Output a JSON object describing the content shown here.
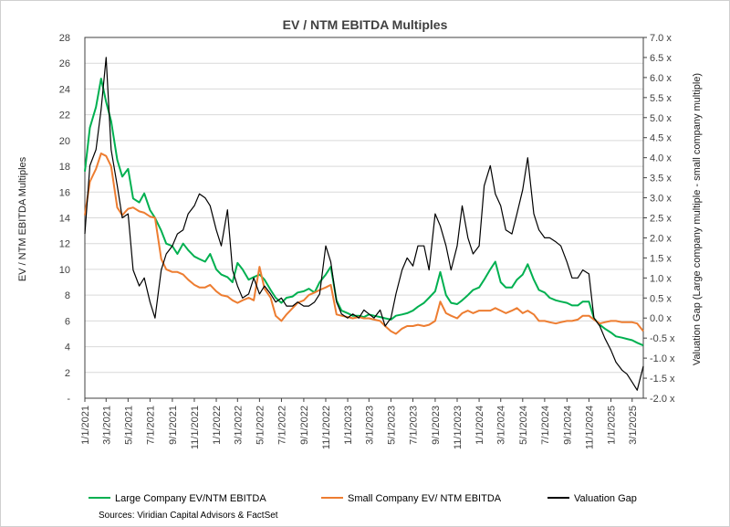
{
  "chart_data": {
    "type": "line",
    "title": "EV / NTM EBITDA Multiples",
    "ylabel": "EV / NTM EBITDA Multiples",
    "y2label": "Valuation Gap (Large company multiple - small company multiple)",
    "ylim": [
      0,
      28
    ],
    "y2lim": [
      -2.0,
      7.0
    ],
    "yticks": [
      "-",
      "2",
      "4",
      "6",
      "8",
      "10",
      "12",
      "14",
      "16",
      "18",
      "20",
      "22",
      "24",
      "26",
      "28"
    ],
    "y2ticks": [
      "-2.0 x",
      "-1.5 x",
      "-1.0 x",
      "-0.5 x",
      "0.0 x",
      "0.5 x",
      "1.0 x",
      "1.5 x",
      "2.0 x",
      "2.5 x",
      "3.0 x",
      "3.5 x",
      "4.0 x",
      "4.5 x",
      "5.0 x",
      "5.5 x",
      "6.0 x",
      "6.5 x",
      "7.0 x"
    ],
    "xticks": [
      "1/1/2021",
      "3/1/2021",
      "5/1/2021",
      "7/1/2021",
      "9/1/2021",
      "11/1/2021",
      "1/1/2022",
      "3/1/2022",
      "5/1/2022",
      "7/1/2022",
      "9/1/2022",
      "11/1/2022",
      "1/1/2023",
      "3/1/2023",
      "5/1/2023",
      "7/1/2023",
      "9/1/2023",
      "11/1/2023",
      "1/1/2024",
      "3/1/2024",
      "5/1/2024",
      "7/1/2024",
      "9/1/2024",
      "11/1/2024",
      "1/1/2025",
      "3/1/2025"
    ],
    "x": [
      "2021-01-01",
      "2021-01-15",
      "2021-02-01",
      "2021-02-15",
      "2021-03-01",
      "2021-03-15",
      "2021-04-01",
      "2021-04-15",
      "2021-05-01",
      "2021-05-15",
      "2021-06-01",
      "2021-06-15",
      "2021-07-01",
      "2021-07-15",
      "2021-08-01",
      "2021-08-15",
      "2021-09-01",
      "2021-09-15",
      "2021-10-01",
      "2021-10-15",
      "2021-11-01",
      "2021-11-15",
      "2021-12-01",
      "2021-12-15",
      "2022-01-01",
      "2022-01-15",
      "2022-02-01",
      "2022-02-15",
      "2022-03-01",
      "2022-03-15",
      "2022-04-01",
      "2022-04-15",
      "2022-05-01",
      "2022-05-15",
      "2022-06-01",
      "2022-06-15",
      "2022-07-01",
      "2022-07-15",
      "2022-08-01",
      "2022-08-15",
      "2022-09-01",
      "2022-09-15",
      "2022-10-01",
      "2022-10-15",
      "2022-11-01",
      "2022-11-15",
      "2022-12-01",
      "2022-12-15",
      "2023-01-01",
      "2023-01-15",
      "2023-02-01",
      "2023-02-15",
      "2023-03-01",
      "2023-03-15",
      "2023-04-01",
      "2023-04-15",
      "2023-05-01",
      "2023-05-15",
      "2023-06-01",
      "2023-06-15",
      "2023-07-01",
      "2023-07-15",
      "2023-08-01",
      "2023-08-15",
      "2023-09-01",
      "2023-09-15",
      "2023-10-01",
      "2023-10-15",
      "2023-11-01",
      "2023-11-15",
      "2023-12-01",
      "2023-12-15",
      "2024-01-01",
      "2024-01-15",
      "2024-02-01",
      "2024-02-15",
      "2024-03-01",
      "2024-03-15",
      "2024-04-01",
      "2024-04-15",
      "2024-05-01",
      "2024-05-15",
      "2024-06-01",
      "2024-06-15",
      "2024-07-01",
      "2024-07-15",
      "2024-08-01",
      "2024-08-15",
      "2024-09-01",
      "2024-09-15",
      "2024-10-01",
      "2024-10-15",
      "2024-11-01",
      "2024-11-15",
      "2024-12-01",
      "2024-12-15",
      "2025-01-01",
      "2025-01-15",
      "2025-02-01",
      "2025-02-15",
      "2025-03-01",
      "2025-03-15",
      "2025-04-01"
    ],
    "series": [
      {
        "name": "Large Company EV/NTM EBITDA",
        "color": "#00b050",
        "axis": "left",
        "values": [
          17.6,
          21.0,
          22.6,
          24.8,
          23.0,
          21.5,
          18.5,
          17.2,
          17.8,
          15.5,
          15.2,
          15.9,
          14.6,
          14.0,
          13.0,
          12.0,
          11.8,
          11.2,
          12.0,
          11.5,
          11.0,
          10.8,
          10.6,
          11.2,
          10.0,
          9.6,
          9.4,
          9.0,
          10.5,
          10.0,
          9.2,
          9.4,
          9.6,
          9.2,
          8.4,
          7.8,
          7.4,
          7.8,
          7.9,
          8.2,
          8.3,
          8.5,
          8.2,
          9.0,
          9.6,
          10.2,
          7.6,
          6.8,
          6.6,
          6.4,
          6.4,
          6.3,
          6.5,
          6.4,
          6.3,
          6.2,
          6.1,
          6.4,
          6.5,
          6.6,
          6.8,
          7.1,
          7.4,
          7.8,
          8.3,
          9.8,
          8.0,
          7.4,
          7.3,
          7.6,
          8.0,
          8.4,
          8.6,
          9.2,
          10.0,
          10.6,
          9.0,
          8.6,
          8.6,
          9.2,
          9.6,
          10.4,
          9.2,
          8.4,
          8.2,
          7.8,
          7.6,
          7.5,
          7.4,
          7.2,
          7.2,
          7.5,
          7.5,
          6.2,
          5.7,
          5.4,
          5.1,
          4.8,
          4.7,
          4.6,
          4.5,
          4.3,
          4.1
        ]
      },
      {
        "name": "Small Company EV/ NTM EBITDA",
        "color": "#ed7d31",
        "axis": "left",
        "values": [
          14.2,
          16.8,
          17.8,
          19.0,
          18.8,
          18.0,
          14.8,
          14.2,
          14.7,
          14.8,
          14.5,
          14.4,
          14.1,
          14.0,
          10.8,
          10.0,
          9.8,
          9.8,
          9.6,
          9.2,
          8.8,
          8.6,
          8.6,
          8.8,
          8.3,
          8.0,
          7.9,
          7.6,
          7.4,
          7.6,
          7.8,
          7.6,
          10.2,
          8.5,
          7.8,
          6.4,
          6.0,
          6.5,
          7.0,
          7.4,
          7.6,
          8.0,
          8.2,
          8.4,
          8.6,
          8.8,
          6.5,
          6.4,
          6.3,
          6.2,
          6.3,
          6.2,
          6.2,
          6.1,
          6.0,
          5.6,
          5.2,
          5.0,
          5.4,
          5.6,
          5.6,
          5.7,
          5.6,
          5.7,
          6.0,
          7.5,
          6.6,
          6.4,
          6.2,
          6.6,
          6.8,
          6.6,
          6.8,
          6.8,
          6.8,
          7.0,
          6.8,
          6.6,
          6.8,
          7.0,
          6.6,
          6.8,
          6.5,
          6.0,
          6.0,
          5.9,
          5.8,
          5.9,
          6.0,
          6.0,
          6.1,
          6.4,
          6.4,
          6.1,
          5.8,
          5.9,
          6.0,
          6.0,
          5.9,
          5.9,
          5.9,
          5.8,
          5.2
        ]
      },
      {
        "name": "Valuation Gap",
        "color": "#000000",
        "axis": "right",
        "values": [
          2.1,
          3.8,
          4.2,
          5.2,
          6.5,
          4.2,
          3.3,
          2.5,
          2.6,
          1.2,
          0.8,
          1.0,
          0.4,
          0.0,
          1.2,
          1.6,
          1.8,
          2.1,
          2.2,
          2.6,
          2.8,
          3.1,
          3.0,
          2.8,
          2.2,
          1.8,
          2.7,
          1.2,
          0.8,
          0.5,
          0.6,
          1.0,
          0.6,
          0.8,
          0.6,
          0.4,
          0.5,
          0.3,
          0.3,
          0.4,
          0.3,
          0.3,
          0.4,
          0.6,
          1.8,
          1.4,
          0.4,
          0.1,
          0.0,
          0.1,
          0.0,
          0.2,
          0.1,
          0.0,
          0.2,
          -0.2,
          0.0,
          0.6,
          1.2,
          1.5,
          1.3,
          1.8,
          1.8,
          1.2,
          2.6,
          2.3,
          1.8,
          1.2,
          1.8,
          2.8,
          2.0,
          1.6,
          1.8,
          3.3,
          3.8,
          3.1,
          2.8,
          2.2,
          2.1,
          2.6,
          3.2,
          4.0,
          2.6,
          2.2,
          2.0,
          2.0,
          1.9,
          1.8,
          1.4,
          1.0,
          1.0,
          1.2,
          1.1,
          0.0,
          -0.2,
          -0.5,
          -0.8,
          -1.1,
          -1.3,
          -1.4,
          -1.6,
          -1.8,
          -1.2
        ]
      }
    ],
    "legend_position": "bottom",
    "grid": true
  },
  "source_label": "Sources",
  "source_text": ": Viridian Capital Advisors & FactSet"
}
